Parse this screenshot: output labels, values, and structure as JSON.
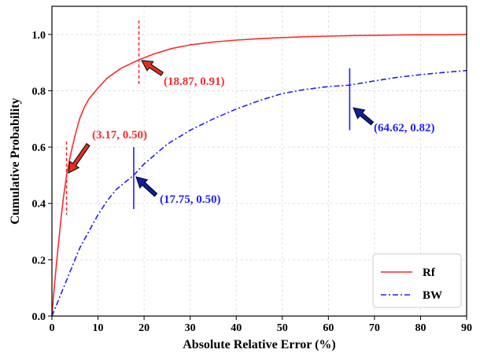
{
  "chart_data": {
    "type": "line",
    "xlabel": "Absolute Relative Error (%)",
    "ylabel": "Cumulative Probability",
    "xlim": [
      0,
      90
    ],
    "ylim": [
      0,
      1.1
    ],
    "xticks": [
      0,
      10,
      20,
      30,
      40,
      50,
      60,
      70,
      80,
      90
    ],
    "yticks": [
      0.0,
      0.2,
      0.4,
      0.6,
      0.8,
      1.0
    ],
    "xtick_labels": [
      "0",
      "10",
      "20",
      "30",
      "40",
      "50",
      "60",
      "70",
      "80",
      "90"
    ],
    "ytick_labels": [
      "0.0",
      "0.2",
      "0.4",
      "0.6",
      "0.8",
      "1.0"
    ],
    "grid": true,
    "legend_position": "bottom-right",
    "series": [
      {
        "name": "Rf",
        "color": "#ff2a2a",
        "style": "solid",
        "x": [
          0,
          0.5,
          1,
          1.5,
          2,
          2.5,
          3.17,
          4,
          5,
          6,
          7,
          8,
          10,
          12,
          15,
          18.87,
          22,
          26,
          30,
          35,
          40,
          45,
          50,
          55,
          60,
          65,
          70,
          75,
          80,
          85,
          90
        ],
        "y": [
          0,
          0.1,
          0.19,
          0.27,
          0.35,
          0.42,
          0.5,
          0.57,
          0.64,
          0.7,
          0.74,
          0.77,
          0.81,
          0.845,
          0.88,
          0.91,
          0.93,
          0.95,
          0.963,
          0.973,
          0.98,
          0.985,
          0.989,
          0.992,
          0.994,
          0.996,
          0.997,
          0.998,
          0.999,
          0.999,
          1.0
        ]
      },
      {
        "name": "BW",
        "color": "#1f1fff",
        "style": "dashdot",
        "x": [
          0,
          1,
          2,
          3,
          4,
          6,
          8,
          10,
          12,
          14,
          17.75,
          20,
          25,
          30,
          35,
          40,
          45,
          50,
          55,
          60,
          64.62,
          70,
          75,
          80,
          85,
          90
        ],
        "y": [
          0,
          0.04,
          0.08,
          0.12,
          0.16,
          0.24,
          0.3,
          0.36,
          0.41,
          0.45,
          0.5,
          0.54,
          0.61,
          0.66,
          0.7,
          0.735,
          0.765,
          0.79,
          0.805,
          0.815,
          0.82,
          0.835,
          0.848,
          0.857,
          0.865,
          0.872
        ]
      }
    ],
    "annotations": [
      {
        "label": "(3.17, 0.50)",
        "x": 3.17,
        "y": 0.5,
        "color": "#ff2a2a",
        "marker_style": "dashed",
        "color_arrow": "#e03020"
      },
      {
        "label": "(18.87, 0.91)",
        "x": 18.87,
        "y": 0.91,
        "color": "#ff2a2a",
        "marker_style": "dashed",
        "color_arrow": "#e03020"
      },
      {
        "label": "(17.75, 0.50)",
        "x": 17.75,
        "y": 0.5,
        "color": "#1f1fff",
        "marker_style": "solid",
        "color_arrow": "#0a1fa0"
      },
      {
        "label": "(64.62, 0.82)",
        "x": 64.62,
        "y": 0.82,
        "color": "#1f1fff",
        "marker_style": "solid",
        "color_arrow": "#0a1fa0"
      }
    ]
  }
}
